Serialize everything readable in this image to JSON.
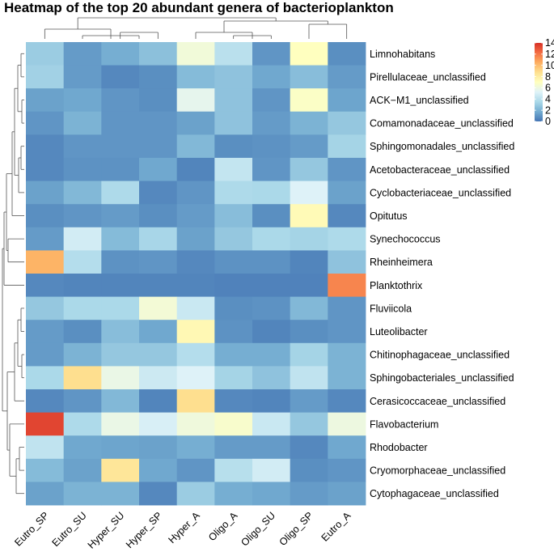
{
  "chart_data": {
    "type": "heatmap",
    "title": "Heatmap of the top 20 abundant genera of bacterioplankton",
    "columns": [
      "Eutro_SP",
      "Eutro_SU",
      "Hyper_SU",
      "Hyper_SP",
      "Hyper_A",
      "Oligo_A",
      "Oligo_SU",
      "Oligo_SP",
      "Eutro_A"
    ],
    "rows": [
      "Limnohabitans",
      "Pirellulaceae_unclassified",
      "ACK−M1_unclassified",
      "Comamonadaceae_unclassified",
      "Sphingomonadales_unclassified",
      "Acetobacteraceae_unclassified",
      "Cyclobacteriaceae_unclassified",
      "Opitutus",
      "Synechococcus",
      "Rheinheimera",
      "Planktothrix",
      "Fluviicola",
      "Luteolibacter",
      "Chitinophagaceae_unclassified",
      "Sphingobacteriales_unclassified",
      "Cerasicoccaceae_unclassified",
      "Flavobacterium",
      "Rhodobacter",
      "Cryomorphaceae_unclassified",
      "Cytophagaceae_unclassified"
    ],
    "values": [
      [
        3.0,
        1.2,
        1.8,
        2.5,
        6.2,
        4.0,
        1.0,
        7.0,
        0.8
      ],
      [
        3.2,
        1.2,
        0.6,
        0.8,
        2.3,
        2.6,
        1.6,
        2.4,
        1.2
      ],
      [
        1.4,
        1.6,
        1.0,
        0.8,
        5.6,
        2.6,
        1.0,
        6.8,
        1.5
      ],
      [
        1.0,
        2.0,
        1.0,
        1.0,
        1.4,
        2.6,
        1.2,
        2.0,
        2.8
      ],
      [
        0.6,
        1.0,
        1.0,
        1.0,
        2.2,
        0.8,
        0.9,
        1.2,
        3.3
      ],
      [
        0.6,
        0.9,
        0.9,
        1.6,
        0.5,
        4.3,
        1.0,
        2.8,
        1.0
      ],
      [
        1.4,
        2.2,
        3.6,
        0.6,
        1.0,
        3.6,
        3.5,
        5.2,
        1.4
      ],
      [
        0.8,
        1.0,
        1.2,
        0.8,
        1.2,
        2.4,
        0.8,
        7.3,
        0.6
      ],
      [
        1.2,
        4.8,
        2.3,
        3.4,
        1.4,
        2.8,
        3.5,
        3.3,
        3.6
      ],
      [
        10.3,
        3.8,
        0.9,
        1.0,
        0.6,
        0.9,
        0.9,
        0.5,
        2.6
      ],
      [
        0.6,
        0.5,
        0.5,
        0.5,
        0.5,
        0.4,
        0.4,
        0.4,
        11.6
      ],
      [
        2.8,
        3.5,
        3.5,
        6.3,
        4.5,
        0.8,
        0.9,
        2.2,
        1.0
      ],
      [
        1.2,
        0.8,
        2.4,
        1.6,
        7.4,
        0.9,
        0.5,
        0.8,
        1.0
      ],
      [
        1.2,
        2.0,
        2.8,
        2.8,
        3.8,
        1.8,
        1.8,
        3.3,
        2.0
      ],
      [
        3.5,
        8.8,
        5.8,
        4.6,
        5.2,
        3.3,
        2.6,
        4.2,
        2.0
      ],
      [
        0.6,
        1.0,
        2.2,
        0.5,
        8.8,
        0.6,
        0.5,
        1.2,
        0.6
      ],
      [
        13.4,
        3.6,
        5.8,
        5.0,
        6.1,
        6.6,
        4.5,
        2.8,
        6.0
      ],
      [
        4.2,
        1.6,
        1.5,
        1.4,
        1.8,
        1.2,
        1.2,
        0.6,
        1.6
      ],
      [
        2.3,
        1.4,
        8.4,
        1.6,
        1.0,
        3.9,
        4.8,
        0.8,
        1.0
      ],
      [
        1.4,
        2.0,
        2.0,
        0.6,
        3.0,
        1.8,
        1.6,
        1.2,
        1.4
      ]
    ],
    "legend": {
      "ticks": [
        0,
        2,
        4,
        6,
        8,
        10,
        12,
        14
      ],
      "min": 0,
      "max": 14,
      "placement": "top-right"
    },
    "color_scale": [
      "#4575b4",
      "#74add1",
      "#abd9e9",
      "#e0f3f8",
      "#ffffbf",
      "#fee090",
      "#fdae61",
      "#f46d43",
      "#d73027"
    ],
    "row_dendrogram_side": "left",
    "column_dendrogram_side": "top"
  }
}
